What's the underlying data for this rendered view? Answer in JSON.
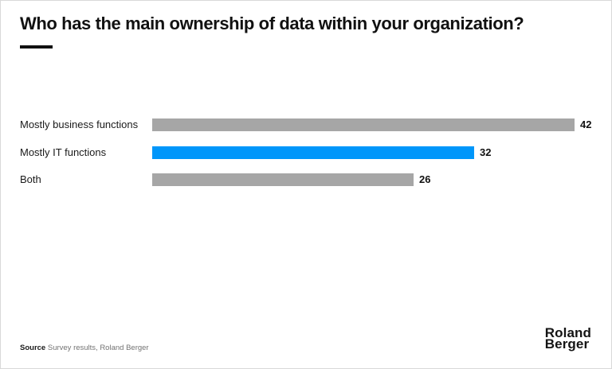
{
  "header": {
    "title": "Who has the main ownership of data within your organization?"
  },
  "chart_data": {
    "type": "bar",
    "orientation": "horizontal",
    "title": "Who has the main ownership of data within your organization?",
    "categories": [
      "Mostly business functions",
      "Mostly IT functions",
      "Both"
    ],
    "values": [
      42,
      32,
      26
    ],
    "bar_colors": [
      "#a6a6a6",
      "#0096fa",
      "#a6a6a6"
    ],
    "highlight_category": "Mostly IT functions",
    "xlabel": "",
    "ylabel": "",
    "xlim": [
      0,
      42
    ],
    "grid": false,
    "legend": "none",
    "value_labels_shown": true
  },
  "footer": {
    "source_label": "Source",
    "source_text": " Survey results, Roland Berger",
    "logo_line1": "Roland",
    "logo_line2": "Berger"
  },
  "colors": {
    "bar_gray": "#a6a6a6",
    "bar_blue": "#0096fa",
    "text_dark": "#111111",
    "source_gray": "#737373",
    "border": "#d9d9d9",
    "background": "#ffffff"
  }
}
